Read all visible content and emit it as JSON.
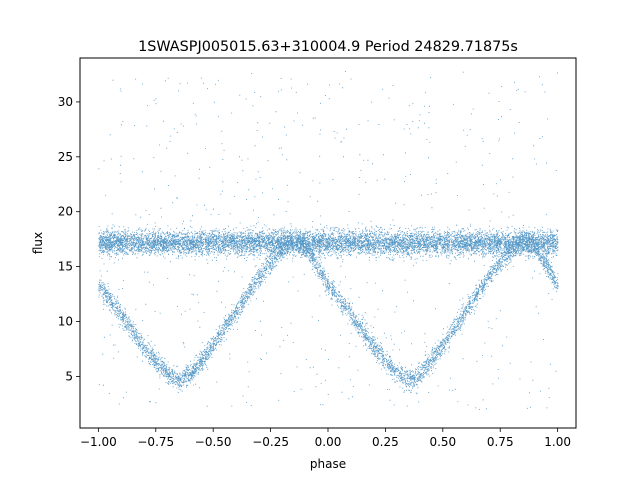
{
  "chart_data": {
    "type": "scatter",
    "title": "1SWASPJ005015.63+310004.9 Period 24829.71875s",
    "xlabel": "phase",
    "ylabel": "flux",
    "xlim": [
      -1.08,
      1.08
    ],
    "ylim": [
      0.3,
      34.0
    ],
    "xticks": [
      -1.0,
      -0.75,
      -0.5,
      -0.25,
      0.0,
      0.25,
      0.5,
      0.75,
      1.0
    ],
    "xtick_labels": [
      "−1.00",
      "−0.75",
      "−0.50",
      "−0.25",
      "0.00",
      "0.25",
      "0.50",
      "0.75",
      "1.00"
    ],
    "yticks": [
      5,
      10,
      15,
      20,
      25,
      30
    ],
    "ytick_labels": [
      "5",
      "10",
      "15",
      "20",
      "25",
      "30"
    ],
    "grid": false,
    "legend": "none",
    "marker_color": "#1f77b4",
    "x_range_of_points": [
      -1.0,
      1.0
    ],
    "series": [
      {
        "component": "constant band",
        "x": [
          -1.0,
          -0.5,
          0.0,
          0.5,
          1.0
        ],
        "y": [
          17.2,
          17.2,
          17.2,
          17.2,
          17.2
        ]
      },
      {
        "component": "eclipsing curve",
        "x": [
          -1.0,
          -0.9,
          -0.8,
          -0.7,
          -0.65,
          -0.6,
          -0.5,
          -0.4,
          -0.3,
          -0.2,
          -0.15,
          -0.1,
          0.0,
          0.1,
          0.2,
          0.3,
          0.35,
          0.4,
          0.5,
          0.6,
          0.7,
          0.8,
          0.85,
          0.9,
          1.0
        ],
        "y": [
          13.4,
          10.6,
          7.6,
          5.3,
          4.7,
          5.2,
          7.9,
          11.0,
          14.1,
          16.7,
          17.2,
          16.8,
          13.4,
          10.6,
          7.6,
          5.3,
          4.7,
          5.2,
          7.9,
          11.0,
          14.1,
          16.7,
          17.2,
          16.8,
          13.4
        ]
      }
    ]
  }
}
